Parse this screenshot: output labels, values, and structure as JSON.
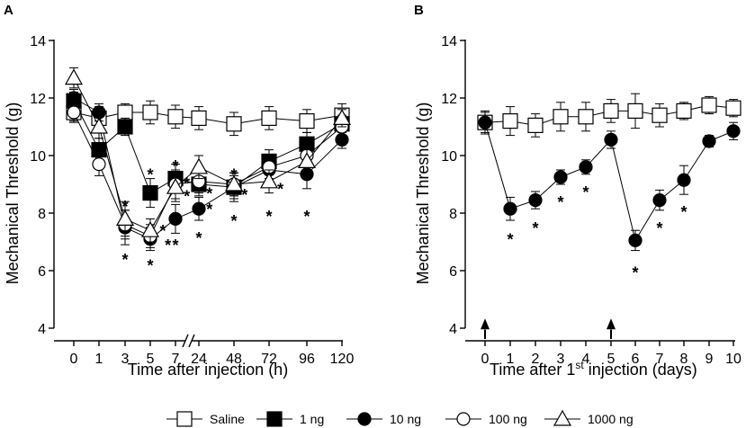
{
  "chart_data": [
    {
      "panel": "A",
      "type": "line",
      "xlabel": "Time after injection (h)",
      "ylabel": "Mechanical Threshold (g)",
      "ylim": [
        4,
        14
      ],
      "yticks": [
        "4",
        "6",
        "8",
        "10",
        "12",
        "14"
      ],
      "x": [
        "0",
        "1",
        "3",
        "5",
        "7",
        "24",
        "48",
        "72",
        "96",
        "120"
      ],
      "axis_break_between": [
        "7",
        "24"
      ],
      "series": [
        {
          "name": "Saline",
          "marker": "square-open",
          "values": [
            11.5,
            11.3,
            11.5,
            11.5,
            11.35,
            11.3,
            11.1,
            11.3,
            11.2,
            11.4
          ],
          "err": [
            0.35,
            0.4,
            0.3,
            0.4,
            0.4,
            0.4,
            0.4,
            0.4,
            0.4,
            0.4
          ]
        },
        {
          "name": "1 ng",
          "marker": "square-filled",
          "values": [
            11.9,
            10.2,
            11.0,
            8.7,
            9.2,
            9.0,
            8.9,
            9.8,
            10.4,
            11.1
          ],
          "err": [
            0.3,
            0.4,
            0.3,
            0.5,
            0.5,
            0.4,
            0.5,
            0.4,
            0.4,
            0.3
          ]
        },
        {
          "name": "10 ng",
          "marker": "circle-filled",
          "values": [
            12.0,
            11.5,
            7.5,
            7.1,
            7.8,
            8.15,
            8.9,
            9.5,
            9.35,
            10.55
          ],
          "err": [
            0.3,
            0.3,
            0.6,
            0.4,
            0.5,
            0.4,
            0.4,
            0.5,
            0.5,
            0.3
          ]
        },
        {
          "name": "100 ng",
          "marker": "circle-open",
          "values": [
            11.5,
            9.7,
            7.6,
            7.2,
            9.0,
            9.1,
            9.0,
            9.6,
            10.0,
            11.0
          ],
          "err": [
            0.3,
            0.4,
            0.5,
            0.4,
            0.5,
            0.4,
            0.4,
            0.4,
            0.4,
            0.3
          ]
        },
        {
          "name": "1000 ng",
          "marker": "triangle-open",
          "values": [
            12.7,
            11.0,
            7.8,
            7.4,
            8.9,
            9.6,
            9.0,
            9.1,
            9.8,
            11.3
          ],
          "err": [
            0.35,
            0.4,
            0.6,
            0.4,
            0.5,
            0.4,
            0.4,
            0.4,
            0.4,
            0.3
          ]
        }
      ],
      "significance_marks": [
        {
          "x": "3",
          "y": 8.35,
          "text": "*"
        },
        {
          "x": "3",
          "y": 6.5,
          "text": "*"
        },
        {
          "x": "5",
          "y": 9.45,
          "text": "*"
        },
        {
          "x": "5",
          "y": 6.3,
          "text": "*"
        },
        {
          "x": "5",
          "y": 7.5,
          "text": "*",
          "dx": 0.5
        },
        {
          "x": "5",
          "y": 7.0,
          "text": "*",
          "dx": 0.7
        },
        {
          "x": "7",
          "y": 9.75,
          "text": "*"
        },
        {
          "x": "7",
          "y": 9.15,
          "text": "*",
          "dx": 0.45
        },
        {
          "x": "7",
          "y": 8.7,
          "text": "*",
          "dx": 0.45
        },
        {
          "x": "7",
          "y": 7.0,
          "text": "*"
        },
        {
          "x": "24",
          "y": 8.8,
          "text": "*",
          "dx": 0.42
        },
        {
          "x": "24",
          "y": 8.25,
          "text": "*",
          "dx": 0.42
        },
        {
          "x": "24",
          "y": 7.25,
          "text": "*"
        },
        {
          "x": "48",
          "y": 9.45,
          "text": "*"
        },
        {
          "x": "48",
          "y": 8.75,
          "text": "*",
          "dx": 0.42
        },
        {
          "x": "48",
          "y": 7.85,
          "text": "*"
        },
        {
          "x": "72",
          "y": 8.95,
          "text": "*",
          "dx": 0.45
        },
        {
          "x": "72",
          "y": 8.0,
          "text": "*"
        },
        {
          "x": "96",
          "y": 8.0,
          "text": "*"
        }
      ]
    },
    {
      "panel": "B",
      "type": "line",
      "xlabel_main": "Time after 1",
      "xlabel_sup": "st",
      "xlabel_tail": " injection (days)",
      "ylabel": "Mechanical Threshold (g)",
      "ylim": [
        4,
        14
      ],
      "yticks": [
        "4",
        "6",
        "8",
        "10",
        "12",
        "14"
      ],
      "x": [
        "0",
        "1",
        "2",
        "3",
        "4",
        "5",
        "6",
        "7",
        "8",
        "9",
        "10"
      ],
      "injection_arrows_at": [
        "0",
        "5"
      ],
      "series": [
        {
          "name": "Saline",
          "marker": "square-open",
          "values": [
            11.15,
            11.2,
            11.05,
            11.35,
            11.35,
            11.55,
            11.55,
            11.4,
            11.55,
            11.75,
            11.65
          ],
          "err": [
            0.4,
            0.5,
            0.4,
            0.5,
            0.5,
            0.4,
            0.6,
            0.4,
            0.3,
            0.3,
            0.3
          ]
        },
        {
          "name": "10 ng",
          "marker": "circle-filled",
          "values": [
            11.15,
            8.15,
            8.45,
            9.25,
            9.6,
            10.55,
            7.05,
            8.45,
            9.15,
            10.5,
            10.85
          ],
          "err": [
            0.35,
            0.4,
            0.3,
            0.25,
            0.25,
            0.3,
            0.35,
            0.35,
            0.5,
            0.2,
            0.3
          ]
        }
      ],
      "significance_marks": [
        {
          "x": "1",
          "y": 7.2,
          "text": "*"
        },
        {
          "x": "2",
          "y": 7.6,
          "text": "*"
        },
        {
          "x": "3",
          "y": 8.5,
          "text": "*"
        },
        {
          "x": "4",
          "y": 8.85,
          "text": "*"
        },
        {
          "x": "6",
          "y": 6.05,
          "text": "*"
        },
        {
          "x": "7",
          "y": 7.6,
          "text": "*"
        },
        {
          "x": "8",
          "y": 8.15,
          "text": "*"
        }
      ]
    }
  ],
  "legend": [
    {
      "marker": "square-open",
      "label": "Saline"
    },
    {
      "marker": "square-filled",
      "label": "1 ng"
    },
    {
      "marker": "circle-filled",
      "label": "10 ng"
    },
    {
      "marker": "circle-open",
      "label": "100 ng"
    },
    {
      "marker": "triangle-open",
      "label": "1000 ng"
    }
  ]
}
